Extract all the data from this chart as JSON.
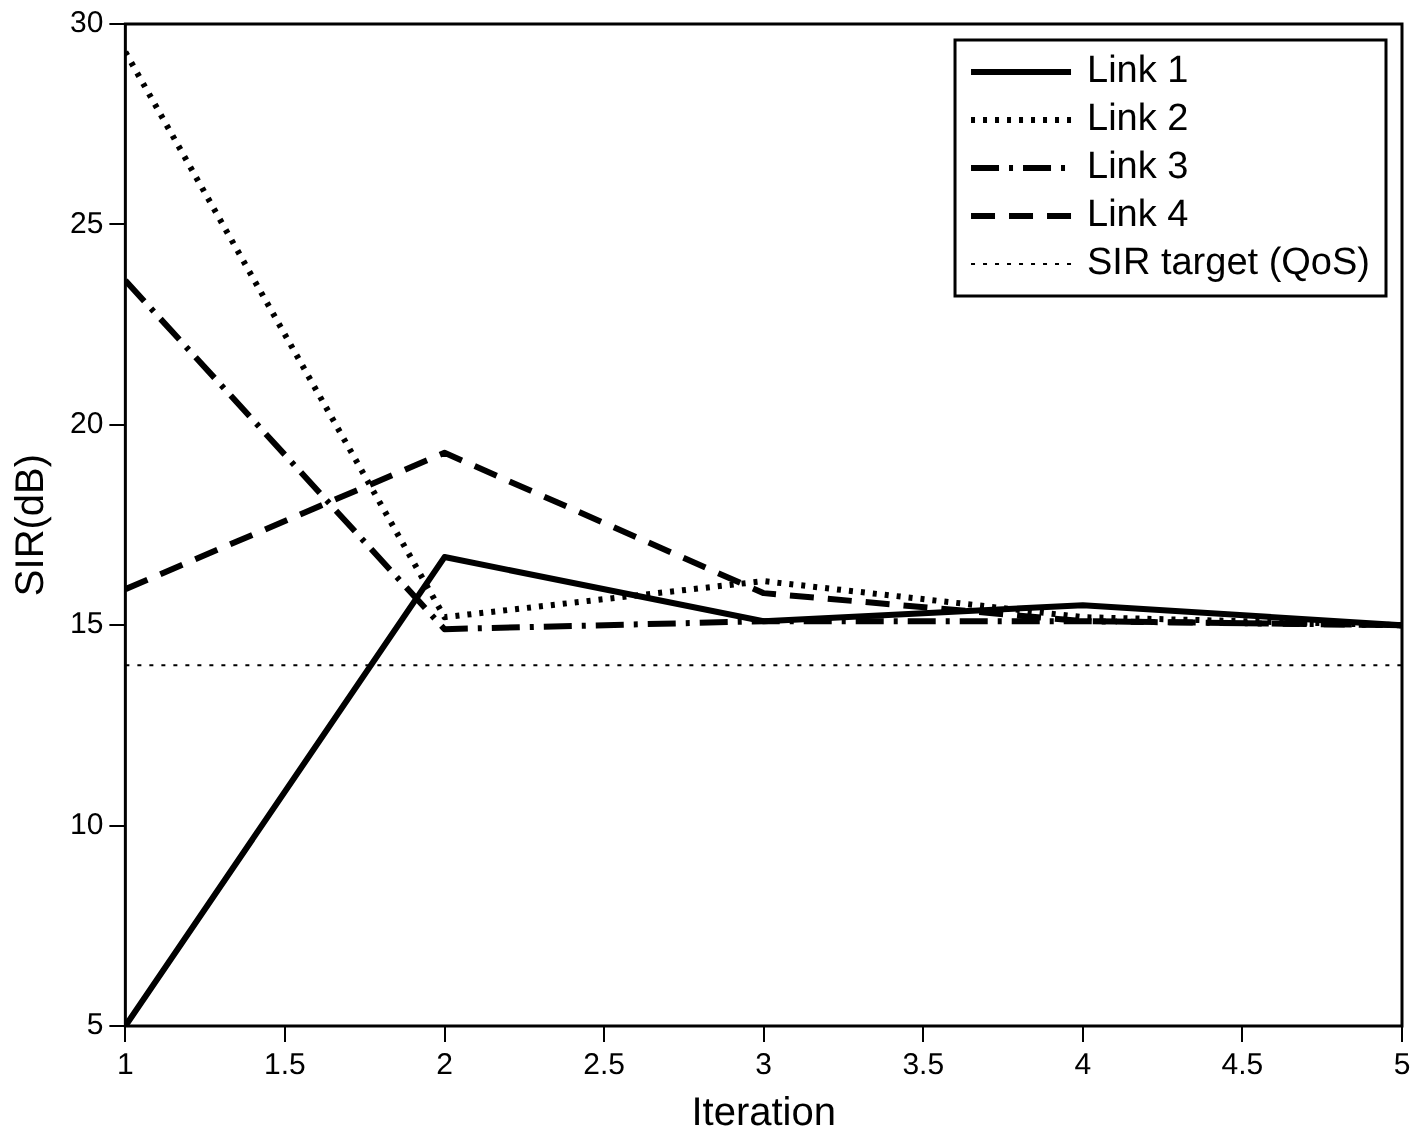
{
  "chart_data": {
    "type": "line",
    "xlabel": "Iteration",
    "ylabel": "SIR(dB)",
    "x": [
      1,
      2,
      3,
      4,
      5
    ],
    "xlim": [
      1,
      5
    ],
    "xticks": [
      1,
      1.5,
      2,
      2.5,
      3,
      3.5,
      4,
      4.5,
      5
    ],
    "ylim": [
      5,
      30
    ],
    "yticks": [
      5,
      10,
      15,
      20,
      25,
      30
    ],
    "grid": false,
    "legend": "top right",
    "marker": "none",
    "series": [
      {
        "name": "Link 1",
        "color": "#000000",
        "line_style": "solid",
        "values": [
          5,
          16.7,
          15.1,
          15.5,
          15.0
        ]
      },
      {
        "name": "Link 2",
        "color": "#000000",
        "line_style": "dotted",
        "values": [
          29.3,
          15.2,
          16.1,
          15.2,
          15.0
        ]
      },
      {
        "name": "Link 3",
        "color": "#000000",
        "line_style": "dashdot",
        "values": [
          23.6,
          14.9,
          15.1,
          15.1,
          15.0
        ]
      },
      {
        "name": "Link 4",
        "color": "#000000",
        "line_style": "dashed",
        "values": [
          15.9,
          19.3,
          15.8,
          15.1,
          15.0
        ]
      }
    ],
    "ref_lines": [
      {
        "axis": "y",
        "value": 14,
        "label": "SIR target (QoS)",
        "color": "#000000",
        "line_style": "dotted"
      }
    ]
  }
}
